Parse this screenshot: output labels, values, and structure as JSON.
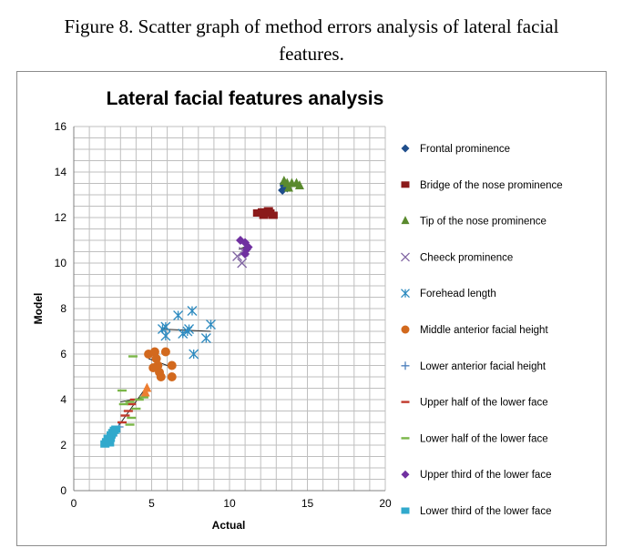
{
  "figure_caption": {
    "line1": "Figure 8. Scatter graph of method errors analysis of lateral facial",
    "line2": "features."
  },
  "chart_data": {
    "type": "scatter",
    "title": "Lateral facial features analysis",
    "xlabel": "Actual",
    "ylabel": "Model",
    "xlim": [
      0,
      20
    ],
    "ylim": [
      0,
      16
    ],
    "x_ticks": [
      0,
      5,
      10,
      15,
      20
    ],
    "y_ticks": [
      0,
      2,
      4,
      6,
      8,
      10,
      12,
      14,
      16
    ],
    "grid": true,
    "legend_position": "right",
    "series": [
      {
        "name": "Frontal prominence",
        "marker": "diamond",
        "color": "#1f4e8c",
        "points": [
          [
            13.4,
            13.2
          ],
          [
            13.6,
            13.4
          ],
          [
            13.5,
            13.5
          ],
          [
            13.7,
            13.3
          ],
          [
            13.5,
            13.4
          ]
        ],
        "trend": [
          [
            13.3,
            13.3
          ],
          [
            13.9,
            13.45
          ]
        ]
      },
      {
        "name": "Bridge of the nose prominence",
        "marker": "square",
        "color": "#8b1a1a",
        "points": [
          [
            11.8,
            12.2
          ],
          [
            12.0,
            12.2
          ],
          [
            12.2,
            12.1
          ],
          [
            12.4,
            12.2
          ],
          [
            12.6,
            12.2
          ],
          [
            12.8,
            12.1
          ],
          [
            12.5,
            12.3
          ],
          [
            12.1,
            12.25
          ]
        ],
        "trend": [
          [
            11.7,
            12.2
          ],
          [
            12.9,
            12.15
          ]
        ]
      },
      {
        "name": "Tip of the nose prominence",
        "marker": "triangle",
        "color": "#5a8a2e",
        "points": [
          [
            13.5,
            13.6
          ],
          [
            13.8,
            13.3
          ],
          [
            14.0,
            13.5
          ],
          [
            14.3,
            13.5
          ],
          [
            14.5,
            13.4
          ],
          [
            13.7,
            13.5
          ]
        ],
        "trend": [
          [
            13.5,
            13.4
          ],
          [
            14.5,
            13.5
          ]
        ]
      },
      {
        "name": "Cheeck prominence",
        "marker": "x",
        "color": "#8064a2",
        "points": [
          [
            10.5,
            10.3
          ],
          [
            10.8,
            10.0
          ],
          [
            10.9,
            10.5
          ]
        ],
        "trend": null
      },
      {
        "name": "Forehead length",
        "marker": "asterisk",
        "color": "#2e8bc0",
        "points": [
          [
            5.7,
            7.1
          ],
          [
            5.9,
            7.2
          ],
          [
            5.9,
            6.8
          ],
          [
            6.7,
            7.7
          ],
          [
            7.0,
            6.9
          ],
          [
            7.3,
            7.0
          ],
          [
            7.4,
            7.1
          ],
          [
            7.6,
            7.9
          ],
          [
            7.7,
            6.0
          ],
          [
            8.5,
            6.7
          ],
          [
            8.8,
            7.3
          ]
        ],
        "trend": [
          [
            5.6,
            7.1
          ],
          [
            8.8,
            7.0
          ]
        ]
      },
      {
        "name": "Middle anterior facial height",
        "marker": "circle",
        "color": "#d2691e",
        "points": [
          [
            4.8,
            6.0
          ],
          [
            5.2,
            6.1
          ],
          [
            5.3,
            5.8
          ],
          [
            5.4,
            5.5
          ],
          [
            5.5,
            5.2
          ],
          [
            5.6,
            5.0
          ],
          [
            5.9,
            6.1
          ],
          [
            6.3,
            5.5
          ],
          [
            6.3,
            5.0
          ],
          [
            5.1,
            5.4
          ]
        ],
        "trend": [
          [
            4.8,
            5.8
          ],
          [
            6.4,
            5.4
          ]
        ]
      },
      {
        "name": "Lower anterior facial height",
        "marker": "plus",
        "color": "#4f81bd",
        "points": [
          [
            2.5,
            2.4
          ],
          [
            2.7,
            2.6
          ],
          [
            2.9,
            2.8
          ]
        ],
        "trend": null
      },
      {
        "name": "Upper half of the lower face",
        "marker": "dash",
        "color": "#c0392b",
        "points": [
          [
            3.1,
            3.0
          ],
          [
            3.3,
            3.3
          ],
          [
            3.5,
            3.5
          ],
          [
            3.7,
            3.8
          ],
          [
            3.9,
            4.0
          ]
        ],
        "trend": null
      },
      {
        "name": "Lower half of the lower face",
        "marker": "dash",
        "color": "#7ab648",
        "points": [
          [
            3.1,
            4.4
          ],
          [
            3.8,
            5.9
          ],
          [
            4.5,
            4.1
          ],
          [
            3.6,
            3.9
          ],
          [
            4.0,
            3.6
          ],
          [
            3.7,
            3.2
          ],
          [
            3.6,
            2.9
          ],
          [
            3.2,
            3.8
          ],
          [
            4.2,
            4.0
          ]
        ],
        "trend": [
          [
            3.0,
            3.9
          ],
          [
            4.6,
            4.1
          ]
        ]
      },
      {
        "name": "Upper third of the lower face",
        "marker": "diamond",
        "color": "#7030a0",
        "points": [
          [
            10.7,
            11.0
          ],
          [
            11.0,
            10.9
          ],
          [
            11.1,
            10.6
          ],
          [
            11.2,
            10.7
          ],
          [
            11.0,
            10.4
          ]
        ],
        "trend": [
          [
            10.6,
            10.6
          ],
          [
            11.3,
            10.8
          ]
        ]
      },
      {
        "name": "Lower third of the lower face",
        "marker": "square",
        "color": "#31a9cc",
        "points": [
          [
            2.0,
            2.05
          ],
          [
            2.1,
            2.15
          ],
          [
            2.25,
            2.2
          ],
          [
            2.35,
            2.3
          ],
          [
            2.4,
            2.45
          ],
          [
            2.5,
            2.55
          ],
          [
            2.6,
            2.65
          ],
          [
            2.7,
            2.7
          ],
          [
            2.2,
            2.3
          ],
          [
            2.3,
            2.1
          ]
        ],
        "trend": [
          [
            2.0,
            2.0
          ],
          [
            2.8,
            2.7
          ]
        ]
      }
    ],
    "extra_markers": [
      {
        "marker": "triangle",
        "color": "#ed7d31",
        "points": [
          [
            4.7,
            4.5
          ],
          [
            4.6,
            4.3
          ]
        ]
      }
    ],
    "fit_line": [
      [
        2.2,
        2.2
      ],
      [
        4.5,
        4.4
      ]
    ]
  }
}
